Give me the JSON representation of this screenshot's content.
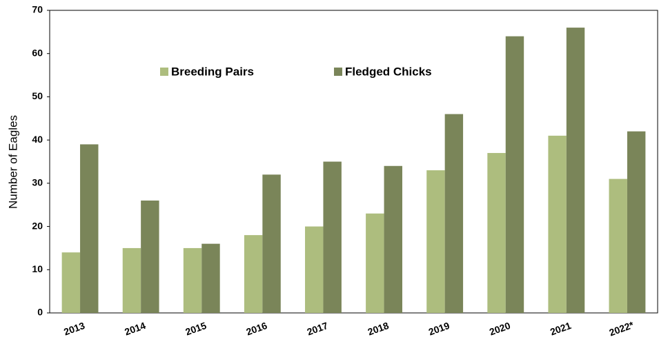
{
  "chart_data": {
    "type": "bar",
    "ylabel": "Number of Eagles",
    "categories": [
      "2013",
      "2014",
      "2015",
      "2016",
      "2017",
      "2018",
      "2019",
      "2020",
      "2021",
      "2022*"
    ],
    "series": [
      {
        "name": "Breeding Pairs",
        "color": "#adbd7e",
        "values": [
          14,
          15,
          15,
          18,
          20,
          23,
          33,
          37,
          41,
          31
        ]
      },
      {
        "name": "Fledged Chicks",
        "color": "#7a8559",
        "values": [
          39,
          26,
          16,
          32,
          35,
          34,
          46,
          64,
          66,
          42
        ]
      }
    ],
    "ylim": [
      0,
      70
    ],
    "yticks": [
      0,
      10,
      20,
      30,
      40,
      50,
      60,
      70
    ],
    "grid": false
  }
}
